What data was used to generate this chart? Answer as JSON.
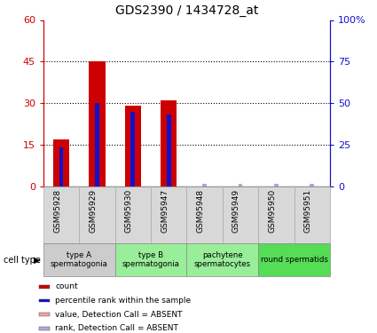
{
  "title": "GDS2390 / 1434728_at",
  "samples": [
    "GSM95928",
    "GSM95929",
    "GSM95930",
    "GSM95947",
    "GSM95948",
    "GSM95949",
    "GSM95950",
    "GSM95951"
  ],
  "red_bars": [
    17,
    45,
    29,
    31,
    0,
    0,
    0,
    0
  ],
  "blue_markers": [
    14,
    30,
    27,
    26,
    0,
    0,
    0,
    0
  ],
  "absent_blue_vals": [
    0,
    0,
    0,
    0,
    1.0,
    1.0,
    1.0,
    1.0
  ],
  "is_absent": [
    false,
    false,
    false,
    false,
    true,
    true,
    true,
    true
  ],
  "left_yticks": [
    0,
    15,
    30,
    45,
    60
  ],
  "right_yticks": [
    0,
    25,
    50,
    75,
    100
  ],
  "right_ylabels": [
    "0",
    "25",
    "50",
    "75",
    "100%"
  ],
  "ylim": [
    0,
    60
  ],
  "right_ylim": [
    0,
    100
  ],
  "bar_color": "#cc0000",
  "bar_absent_color": "#f4a0a0",
  "blue_color": "#1111cc",
  "blue_absent_color": "#aaaadd",
  "sample_box_color": "#d8d8d8",
  "ct_colors": [
    "#cccccc",
    "#99ee99",
    "#99ee99",
    "#55dd55"
  ],
  "ct_labels": [
    "type A\nspermatogonia",
    "type B\nspermatogonia",
    "pachytene\nspermatocytes",
    "round spermatids"
  ],
  "ct_ranges": [
    [
      0,
      1
    ],
    [
      2,
      3
    ],
    [
      4,
      5
    ],
    [
      6,
      7
    ]
  ],
  "legend_items": [
    {
      "color": "#cc0000",
      "label": "count"
    },
    {
      "color": "#1111cc",
      "label": "percentile rank within the sample"
    },
    {
      "color": "#f4a0a0",
      "label": "value, Detection Call = ABSENT"
    },
    {
      "color": "#aaaadd",
      "label": "rank, Detection Call = ABSENT"
    }
  ]
}
